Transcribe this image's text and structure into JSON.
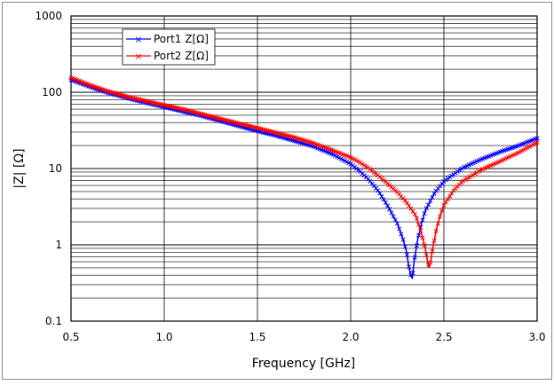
{
  "chart_data": {
    "type": "line",
    "title": "",
    "xlabel": "Frequency [GHz]",
    "ylabel": "|Z| [Ω]",
    "xlim": [
      0.5,
      3.0
    ],
    "ylim": [
      0.1,
      1000
    ],
    "yscale": "log",
    "grid": true,
    "legend_position": "top-left",
    "x_ticks": [
      "0.5",
      "1.0",
      "1.5",
      "2.0",
      "2.5",
      "3.0"
    ],
    "y_ticks": [
      "0.1",
      "1",
      "10",
      "100",
      "1000"
    ],
    "series": [
      {
        "name": "Port1 Z[Ω]",
        "color": "#0000ff",
        "marker": "x",
        "x": [
          0.5,
          0.6,
          0.7,
          0.8,
          0.9,
          1.0,
          1.1,
          1.2,
          1.3,
          1.4,
          1.5,
          1.6,
          1.7,
          1.8,
          1.9,
          2.0,
          2.05,
          2.1,
          2.15,
          2.2,
          2.25,
          2.28,
          2.3,
          2.31,
          2.32,
          2.33,
          2.34,
          2.36,
          2.38,
          2.4,
          2.45,
          2.5,
          2.6,
          2.7,
          2.8,
          2.9,
          3.0
        ],
        "values": [
          145,
          118,
          98,
          84,
          73,
          64,
          56,
          49,
          42,
          36,
          31,
          27,
          23,
          19.5,
          15.5,
          11.5,
          9.2,
          7.0,
          5.0,
          3.2,
          1.9,
          1.2,
          0.8,
          0.55,
          0.42,
          0.36,
          0.6,
          1.2,
          1.9,
          2.8,
          4.8,
          6.8,
          10.2,
          13.2,
          16.5,
          20.0,
          25.0
        ]
      },
      {
        "name": "Port2 Z[Ω]",
        "color": "#ff0000",
        "marker": "x",
        "x": [
          0.5,
          0.6,
          0.7,
          0.8,
          0.9,
          1.0,
          1.1,
          1.2,
          1.3,
          1.4,
          1.5,
          1.6,
          1.7,
          1.8,
          1.9,
          2.0,
          2.05,
          2.1,
          2.15,
          2.2,
          2.25,
          2.3,
          2.35,
          2.38,
          2.4,
          2.41,
          2.42,
          2.43,
          2.44,
          2.46,
          2.48,
          2.5,
          2.55,
          2.6,
          2.7,
          2.8,
          2.9,
          3.0
        ],
        "values": [
          155,
          125,
          103,
          88,
          77,
          68,
          60,
          52,
          45,
          39,
          34,
          29.5,
          25.5,
          21.5,
          17.5,
          14.0,
          12.0,
          10.0,
          8.0,
          6.3,
          4.9,
          3.6,
          2.4,
          1.4,
          0.9,
          0.65,
          0.5,
          0.62,
          0.9,
          1.6,
          2.4,
          3.3,
          5.1,
          6.8,
          9.6,
          12.4,
          16.2,
          22.0
        ]
      }
    ]
  }
}
